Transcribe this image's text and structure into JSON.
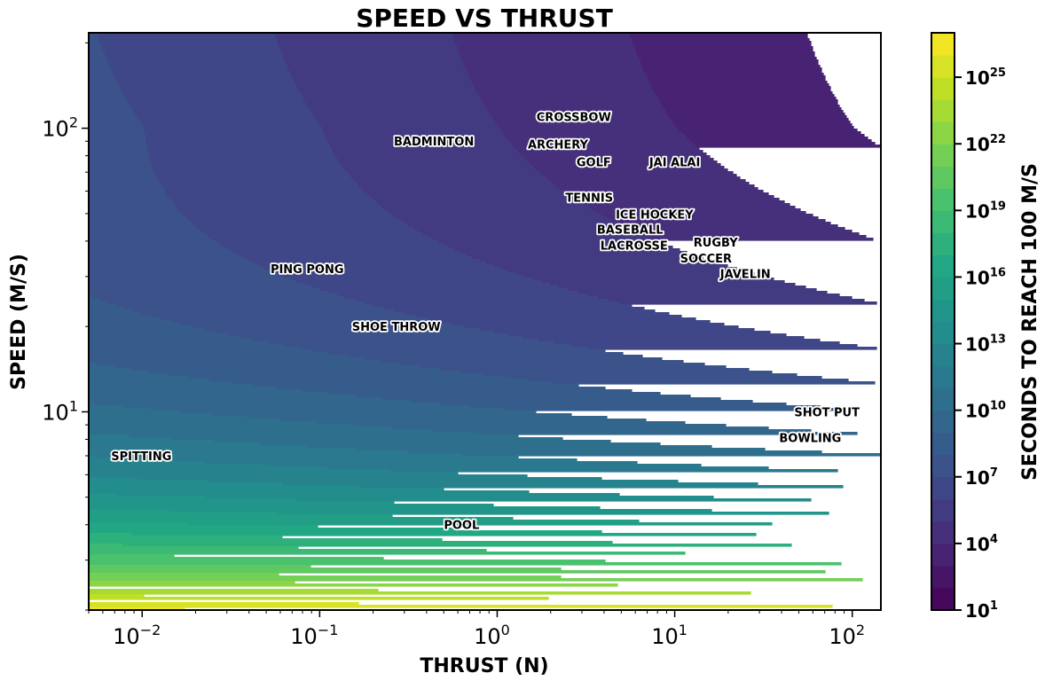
{
  "chart_data": {
    "type": "heatmap",
    "subtype": "filled-contour",
    "title": "SPEED VS THRUST",
    "xlabel": "THRUST (N)",
    "ylabel": "SPEED (M/S)",
    "xscale": "log",
    "yscale": "log",
    "xlim": [
      0.005,
      145
    ],
    "ylim": [
      2,
      217
    ],
    "xticks": [
      {
        "exp": "-2",
        "value": 0.01
      },
      {
        "exp": "-1",
        "value": 0.1
      },
      {
        "exp": "0",
        "value": 1
      },
      {
        "exp": "1",
        "value": 10
      },
      {
        "exp": "2",
        "value": 100
      }
    ],
    "yticks": [
      {
        "exp": "1",
        "value": 10
      },
      {
        "exp": "2",
        "value": 100
      }
    ],
    "colormap": "viridis",
    "colorbar": {
      "label": "SECONDS TO REACH 100 M/S",
      "scale": "log",
      "range_exp": [
        1,
        27
      ],
      "ticks": [
        {
          "exp": "1"
        },
        {
          "exp": "4"
        },
        {
          "exp": "7"
        },
        {
          "exp": "10"
        },
        {
          "exp": "13"
        },
        {
          "exp": "16"
        },
        {
          "exp": "19"
        },
        {
          "exp": "22"
        },
        {
          "exp": "25"
        }
      ]
    },
    "grid": false,
    "annotations": [
      {
        "label": "CROSSBOW",
        "thrust": 2.7,
        "speed": 110
      },
      {
        "label": "BADMINTON",
        "thrust": 0.44,
        "speed": 90
      },
      {
        "label": "ARCHERY",
        "thrust": 2.2,
        "speed": 88
      },
      {
        "label": "GOLF",
        "thrust": 3.5,
        "speed": 76
      },
      {
        "label": "JAI ALAI",
        "thrust": 10,
        "speed": 76
      },
      {
        "label": "TENNIS",
        "thrust": 3.3,
        "speed": 57
      },
      {
        "label": "BASEBALL",
        "thrust": 5.6,
        "speed": 45
      },
      {
        "label": "ICE HOCKEY",
        "thrust": 7.7,
        "speed": 47
      },
      {
        "label": "LACROSSE",
        "thrust": 5.9,
        "speed": 40
      },
      {
        "label": "SOCCER",
        "thrust": 15,
        "speed": 36
      },
      {
        "label": "RUGBY",
        "thrust": 17,
        "speed": 38
      },
      {
        "label": "JAVELIN",
        "thrust": 25,
        "speed": 31
      },
      {
        "label": "PING PONG",
        "thrust": 0.085,
        "speed": 32
      },
      {
        "label": "SHOE THROW",
        "thrust": 0.27,
        "speed": 20
      },
      {
        "label": "SHOT PUT",
        "thrust": 72,
        "speed": 10
      },
      {
        "label": "BOWLING",
        "thrust": 58,
        "speed": 8.1
      },
      {
        "label": "SPITTING",
        "thrust": 0.0099,
        "speed": 7.0
      },
      {
        "label": "POOL",
        "thrust": 0.63,
        "speed": 4.0
      }
    ]
  }
}
